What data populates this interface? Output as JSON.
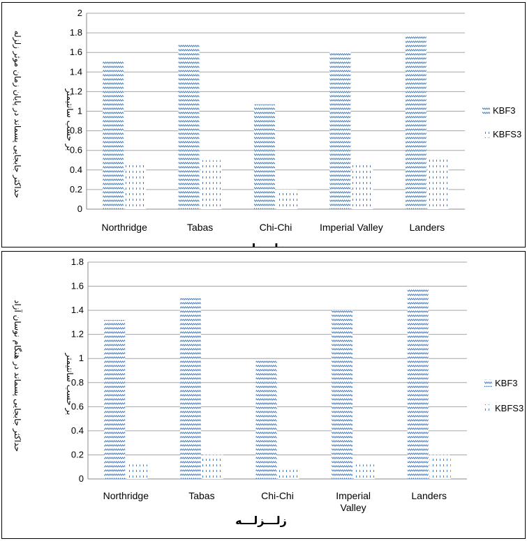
{
  "chart_data": [
    {
      "type": "bar",
      "categories": [
        "Northridge",
        "Tabas",
        "Chi-Chi",
        "Imperial Valley",
        "Landers"
      ],
      "series": [
        {
          "name": "KBF3",
          "values": [
            1.52,
            1.68,
            1.07,
            1.61,
            1.77
          ]
        },
        {
          "name": "KBFS3",
          "values": [
            0.45,
            0.5,
            0.2,
            0.47,
            0.53
          ]
        }
      ],
      "ylim": [
        0,
        2
      ],
      "ytick_labels": [
        "0",
        "0.2",
        "0.4",
        "0.6",
        "0.8",
        "1",
        "1.2",
        "1.4",
        "1.6",
        "1.8",
        "2"
      ],
      "ylabel": "حداکثر جابجایی پسماند در پایان زمان موثر زلزله",
      "ylabel_unit": "بر حسب سانتیمتر",
      "xlabel": "زلـــزلـــه",
      "grid": true,
      "legend_position": "right",
      "colors": {
        "bars": "#4a7ebb",
        "grid": "#a6a6a6"
      }
    },
    {
      "type": "bar",
      "categories": [
        "Northridge",
        "Tabas",
        "Chi-Chi",
        "Imperial Valley",
        "Landers"
      ],
      "category_lines": [
        [
          "Northridge"
        ],
        [
          "Tabas"
        ],
        [
          "Chi-Chi"
        ],
        [
          "Imperial",
          "Valley"
        ],
        [
          "Landers"
        ]
      ],
      "series": [
        {
          "name": "KBF3",
          "values": [
            1.32,
            1.5,
            0.98,
            1.4,
            1.58
          ]
        },
        {
          "name": "KBFS3",
          "values": [
            0.12,
            0.2,
            0.09,
            0.12,
            0.2
          ]
        }
      ],
      "ylim": [
        0,
        1.8
      ],
      "ytick_labels": [
        "0",
        "0.2",
        "0.4",
        "0.6",
        "0.8",
        "1",
        "1.2",
        "1.4",
        "1.6",
        "1.8"
      ],
      "ylabel": "حداکثر جابجایی پسماند در هنگام نوسان آزاد",
      "ylabel_unit": "بر حسب سانتیمتر",
      "xlabel": "زلـــزلـــه",
      "grid": true,
      "legend_position": "right",
      "colors": {
        "bars": "#4a7ebb",
        "grid": "#a6a6a6"
      }
    }
  ]
}
